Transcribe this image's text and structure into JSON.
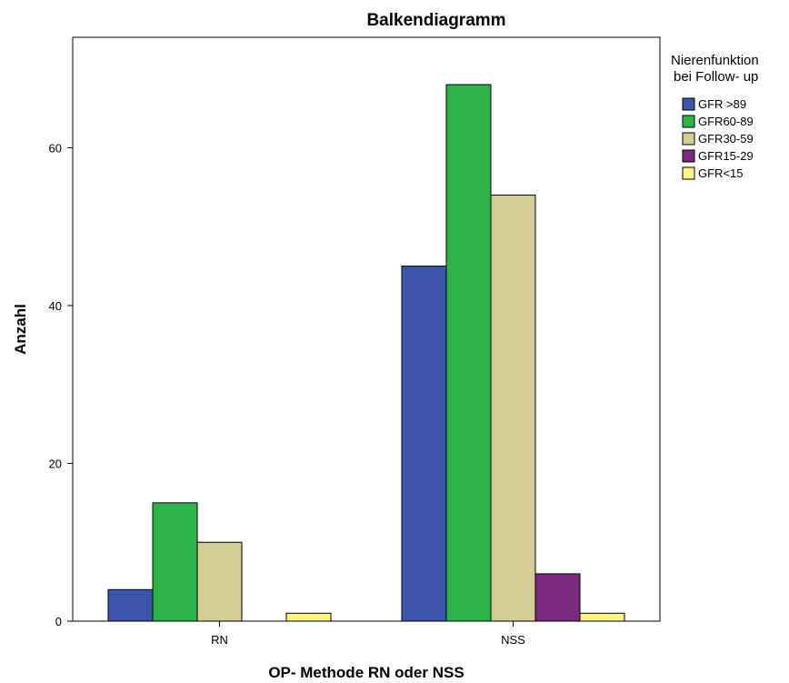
{
  "chart_data": {
    "type": "bar",
    "title": "Balkendiagramm",
    "xlabel": "OP- Methode RN oder NSS",
    "ylabel": "Anzahl",
    "categories": [
      "RN",
      "NSS"
    ],
    "ylim": [
      0,
      74
    ],
    "yticks": [
      0,
      20,
      40,
      60
    ],
    "legend": {
      "title_lines": [
        "Nierenfunktion",
        "bei Follow- up"
      ],
      "placement": "right"
    },
    "series": [
      {
        "name": "GFR >89",
        "color": "#3d55a8",
        "values": [
          4,
          45
        ]
      },
      {
        "name": "GFR60-89",
        "color": "#2db34a",
        "values": [
          15,
          68
        ]
      },
      {
        "name": "GFR30-59",
        "color": "#d4cd96",
        "values": [
          10,
          54
        ]
      },
      {
        "name": "GFR15-29",
        "color": "#7a2a7c",
        "values": [
          0,
          6
        ]
      },
      {
        "name": "GFR<15",
        "color": "#fbf68a",
        "values": [
          1,
          1
        ]
      }
    ]
  }
}
